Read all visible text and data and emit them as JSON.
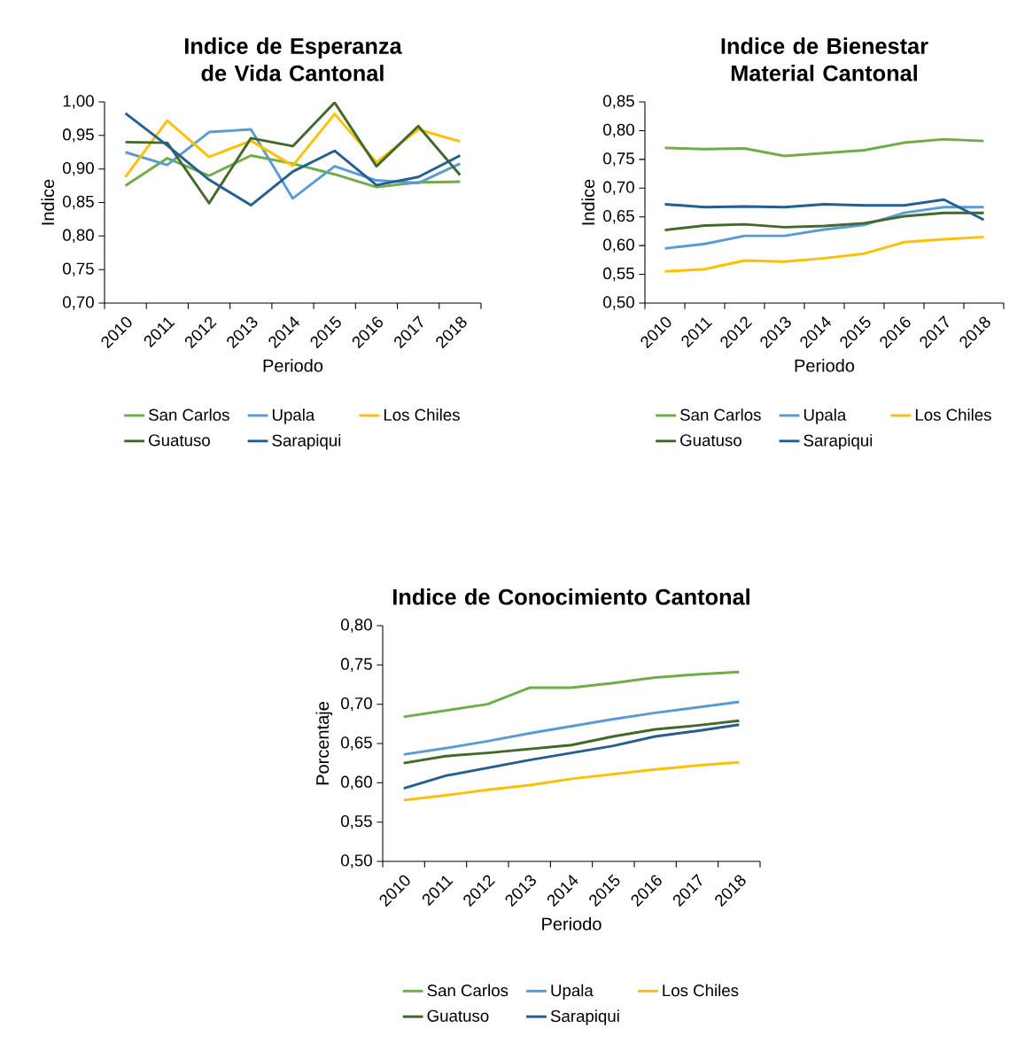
{
  "chart_data": [
    {
      "type": "line",
      "title": "Indice de Esperanza de Vida Cantonal",
      "xlabel": "Periodo",
      "ylabel": "Indice",
      "legend": "bottom",
      "categories": [
        "2010",
        "2011",
        "2012",
        "2013",
        "2014",
        "2015",
        "2016",
        "2017",
        "2018"
      ],
      "ylim": [
        0.7,
        1.0
      ],
      "yticks": [
        {
          "value": 0.7,
          "label": "0,70"
        },
        {
          "value": 0.75,
          "label": "0,75"
        },
        {
          "value": 0.8,
          "label": "0,80"
        },
        {
          "value": 0.85,
          "label": "0,85"
        },
        {
          "value": 0.9,
          "label": "0,90"
        },
        {
          "value": 0.95,
          "label": "0,95"
        },
        {
          "value": 1.0,
          "label": "1,00"
        }
      ],
      "series": [
        {
          "name": "San Carlos",
          "color": "#70ad47",
          "values": [
            0.875,
            0.916,
            0.89,
            0.92,
            0.908,
            0.892,
            0.873,
            0.88,
            0.881
          ]
        },
        {
          "name": "Upala",
          "color": "#5b9bd5",
          "values": [
            0.925,
            0.906,
            0.955,
            0.959,
            0.856,
            0.904,
            0.883,
            0.879,
            0.908
          ]
        },
        {
          "name": "Los Chiles",
          "color": "#ffc000",
          "values": [
            0.888,
            0.972,
            0.918,
            0.942,
            0.905,
            0.982,
            0.91,
            0.959,
            0.941
          ]
        },
        {
          "name": "Guatuso",
          "color": "#43682b",
          "values": [
            0.94,
            0.939,
            0.849,
            0.946,
            0.934,
            0.999,
            0.904,
            0.964,
            0.891
          ]
        },
        {
          "name": "Sarapiqui",
          "color": "#255e91",
          "values": [
            0.983,
            0.935,
            0.884,
            0.846,
            0.896,
            0.927,
            0.876,
            0.888,
            0.92
          ]
        }
      ]
    },
    {
      "type": "line",
      "title": "Indice de Bienestar Material Cantonal",
      "xlabel": "Periodo",
      "ylabel": "Indice",
      "legend": "bottom",
      "categories": [
        "2010",
        "2011",
        "2012",
        "2013",
        "2014",
        "2015",
        "2016",
        "2017",
        "2018"
      ],
      "ylim": [
        0.5,
        0.85
      ],
      "yticks": [
        {
          "value": 0.5,
          "label": "0,50"
        },
        {
          "value": 0.55,
          "label": "0,55"
        },
        {
          "value": 0.6,
          "label": "0,60"
        },
        {
          "value": 0.65,
          "label": "0,65"
        },
        {
          "value": 0.7,
          "label": "0,70"
        },
        {
          "value": 0.75,
          "label": "0,75"
        },
        {
          "value": 0.8,
          "label": "0,80"
        },
        {
          "value": 0.85,
          "label": "0,85"
        }
      ],
      "series": [
        {
          "name": "San Carlos",
          "color": "#70ad47",
          "values": [
            0.77,
            0.768,
            0.769,
            0.756,
            0.761,
            0.766,
            0.779,
            0.785,
            0.782
          ]
        },
        {
          "name": "Upala",
          "color": "#5b9bd5",
          "values": [
            0.595,
            0.603,
            0.617,
            0.617,
            0.628,
            0.636,
            0.657,
            0.667,
            0.667
          ]
        },
        {
          "name": "Los Chiles",
          "color": "#ffc000",
          "values": [
            0.555,
            0.559,
            0.574,
            0.572,
            0.578,
            0.586,
            0.606,
            0.611,
            0.615
          ]
        },
        {
          "name": "Guatuso",
          "color": "#43682b",
          "values": [
            0.627,
            0.635,
            0.637,
            0.632,
            0.634,
            0.639,
            0.651,
            0.657,
            0.657
          ]
        },
        {
          "name": "Sarapiqui",
          "color": "#255e91",
          "values": [
            0.672,
            0.667,
            0.668,
            0.667,
            0.672,
            0.67,
            0.67,
            0.68,
            0.645
          ]
        }
      ]
    },
    {
      "type": "line",
      "title": "Indice de Conocimiento Cantonal",
      "xlabel": "Periodo",
      "ylabel": "Porcentaje",
      "legend": "bottom",
      "categories": [
        "2010",
        "2011",
        "2012",
        "2013",
        "2014",
        "2015",
        "2016",
        "2017",
        "2018"
      ],
      "ylim": [
        0.5,
        0.8
      ],
      "yticks": [
        {
          "value": 0.5,
          "label": "0,50"
        },
        {
          "value": 0.55,
          "label": "0,55"
        },
        {
          "value": 0.6,
          "label": "0,60"
        },
        {
          "value": 0.65,
          "label": "0,65"
        },
        {
          "value": 0.7,
          "label": "0,70"
        },
        {
          "value": 0.75,
          "label": "0,75"
        },
        {
          "value": 0.8,
          "label": "0,80"
        }
      ],
      "series": [
        {
          "name": "San Carlos",
          "color": "#70ad47",
          "values": [
            0.684,
            0.692,
            0.7,
            0.721,
            0.721,
            0.727,
            0.734,
            0.738,
            0.741
          ]
        },
        {
          "name": "Upala",
          "color": "#5b9bd5",
          "values": [
            0.636,
            0.644,
            0.653,
            0.663,
            0.672,
            0.681,
            0.689,
            0.696,
            0.703
          ]
        },
        {
          "name": "Los Chiles",
          "color": "#ffc000",
          "values": [
            0.578,
            0.584,
            0.591,
            0.597,
            0.605,
            0.611,
            0.617,
            0.622,
            0.626
          ]
        },
        {
          "name": "Guatuso",
          "color": "#43682b",
          "values": [
            0.625,
            0.634,
            0.638,
            0.643,
            0.648,
            0.659,
            0.668,
            0.673,
            0.679
          ]
        },
        {
          "name": "Sarapiqui",
          "color": "#255e91",
          "values": [
            0.593,
            0.609,
            0.619,
            0.629,
            0.638,
            0.647,
            0.659,
            0.666,
            0.674
          ]
        }
      ]
    }
  ]
}
